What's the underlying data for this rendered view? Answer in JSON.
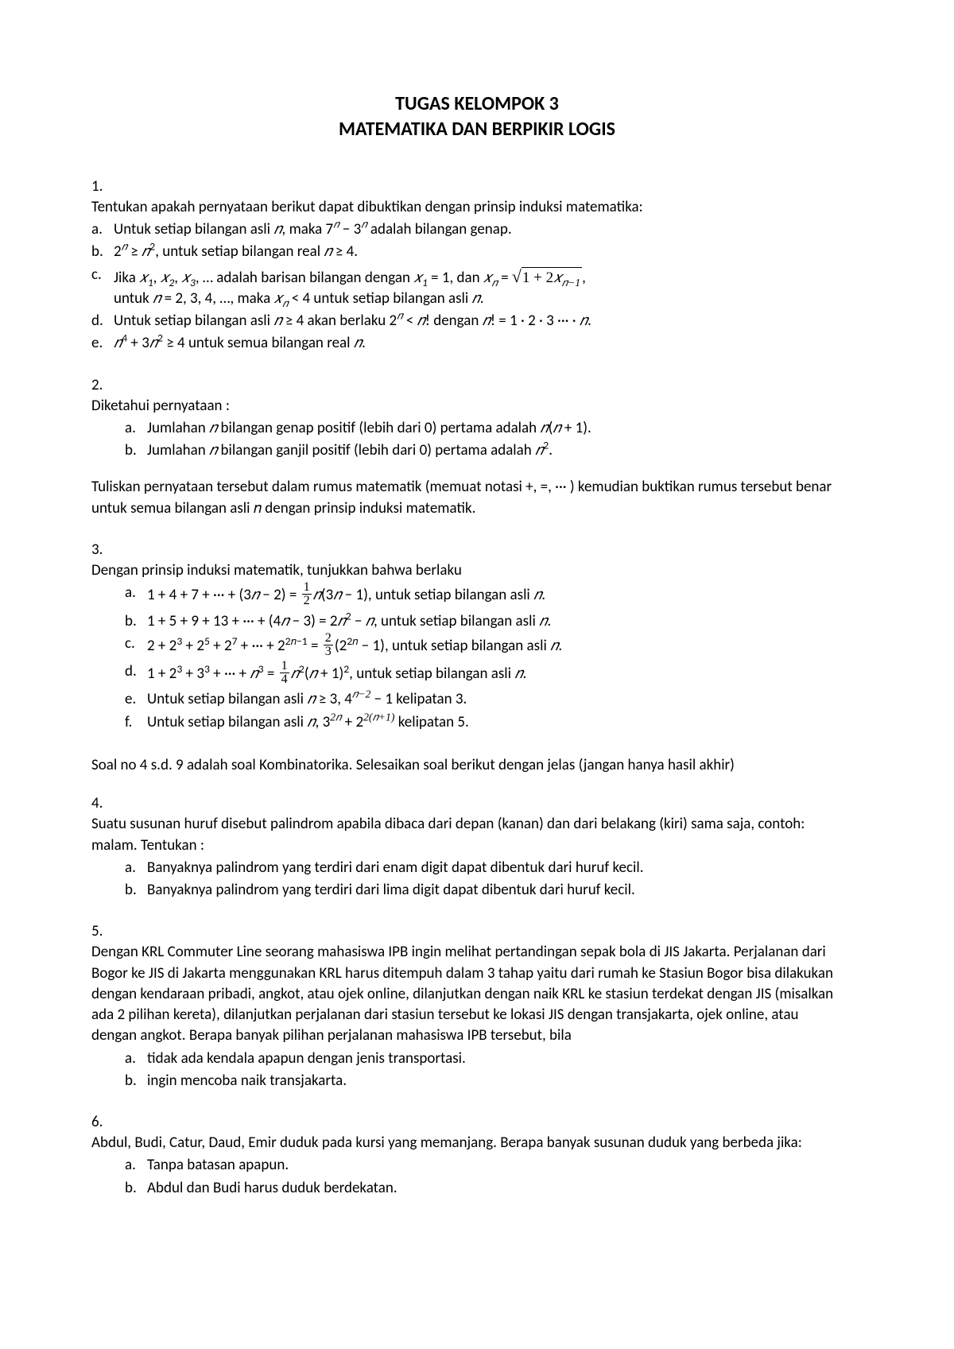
{
  "title": {
    "line1": "TUGAS KELOMPOK 3",
    "line2": "MATEMATIKA DAN BERPIKIR LOGIS"
  },
  "q1": {
    "num": "1.",
    "text": "Tentukan apakah pernyataan berikut dapat dibuktikan dengan prinsip induksi matematika:",
    "a_l": "a.",
    "a_t1": "Untuk setiap bilangan asli ",
    "a_t2": ",  maka  7",
    "a_t3": " − 3",
    "a_t4": "  adalah bilangan genap.",
    "b_l": "b.",
    "b_t1": "2",
    "b_t2": " ≥ ",
    "b_t3": ",  untuk setiap bilangan real  ",
    "b_t4": " ≥ 4.",
    "c_l": "c.",
    "c_t1": "Jika ",
    "c_t2": ", ",
    "c_t3": ", ",
    "c_t4": ", …  adalah barisan bilangan dengan ",
    "c_t5": " = 1,  dan  ",
    "c_t6": " = ",
    "c_t7": "1 + 2",
    "c_t8": ",",
    "c_t9": "untuk ",
    "c_t10": " = 2, 3, 4, …, maka  ",
    "c_t11": " < 4 untuk setiap bilangan asli ",
    "c_t12": ".",
    "d_l": "d.",
    "d_t1": "Untuk setiap bilangan asli ",
    "d_t2": " ≥ 4 akan berlaku  2",
    "d_t3": " < ",
    "d_t4": "!  dengan  ",
    "d_t5": "! = 1 · 2 · 3 ··· · ",
    "d_t6": ".",
    "e_l": "e.",
    "e_t1": "",
    "e_t2": " + 3",
    "e_t3": " ≥ 4  untuk semua bilangan real ",
    "e_t4": "."
  },
  "q2": {
    "num": "2.",
    "text": "Diketahui pernyataan :",
    "a_l": "a.",
    "a_t1": "Jumlahan ",
    "a_t2": " bilangan genap positif (lebih dari 0) pertama adalah ",
    "a_t3": "(",
    "a_t4": " + 1).",
    "b_l": "b.",
    "b_t1": "Jumlahan ",
    "b_t2": " bilangan ganjil positif (lebih dari 0) pertama adalah ",
    "b_t3": ".",
    "follow": "Tuliskan pernyataan tersebut dalam rumus matematik (memuat notasi +,  =, ··· ) kemudian buktikan rumus tersebut benar untuk semua bilangan asli 𝑛 dengan prinsip induksi matematik."
  },
  "q3": {
    "num": "3.",
    "text": "Dengan prinsip induksi matematik,  tunjukkan bahwa  berlaku",
    "a_l": "a.",
    "a_t1": "1 + 4 + 7 +  ···  + (3",
    "a_t2": " − 2) = ",
    "a_t3": "(3",
    "a_t4": " − 1),  untuk setiap bilangan asli ",
    "a_t5": ".",
    "b_l": "b.",
    "b_t1": "1 + 5 + 9 + 13 +  ···  + (4",
    "b_t2": " − 3) = 2",
    "b_t3": " − ",
    "b_t4": ",  untuk setiap bilangan asli ",
    "b_t5": ".",
    "c_l": "c.",
    "c_t1": "2 + 2",
    "c_t2": " + 2",
    "c_t3": " + 2",
    "c_t4": " +  ···  + 2",
    "c_t5": " = ",
    "c_t6": "(2",
    "c_t7": " − 1),  untuk setiap bilangan asli ",
    "c_t8": ".",
    "d_l": "d.",
    "d_t1": "1 + 2",
    "d_t2": " + 3",
    "d_t3": " +  ···  + ",
    "d_t4": " = ",
    "d_t5": "(",
    "d_t6": " + 1)",
    "d_t7": ",  untuk setiap bilangan asli ",
    "d_t8": ".",
    "e_l": "e.",
    "e_t1": "Untuk setiap bilangan asli ",
    "e_t2": " ≥ 3,    4",
    "e_t3": " − 1 kelipatan 3.",
    "f_l": "f.",
    "f_t1": "Untuk setiap bilangan asli ",
    "f_t2": ",     3",
    "f_t3": " + 2",
    "f_t4": " kelipatan 5."
  },
  "note": "Soal no 4 s.d. 9 adalah soal Kombinatorika. Selesaikan soal berikut dengan jelas (jangan hanya hasil akhir)",
  "q4": {
    "num": "4.",
    "text": "Suatu susunan huruf  disebut palindrom apabila dibaca dari depan (kanan) dan dari belakang (kiri) sama saja, contoh: malam.  Tentukan :",
    "a_l": "a.",
    "a_t": "Banyaknya palindrom yang terdiri dari enam digit  dapat dibentuk dari huruf kecil.",
    "b_l": "b.",
    "b_t": "Banyaknya palindrom yang terdiri dari lima digit  dapat dibentuk dari huruf kecil."
  },
  "q5": {
    "num": "5.",
    "text": "Dengan KRL Commuter Line seorang mahasiswa IPB ingin melihat pertandingan sepak bola di JIS Jakarta. Perjalanan dari Bogor ke JIS  di Jakarta menggunakan KRL harus ditempuh dalam 3 tahap yaitu dari rumah ke Stasiun Bogor bisa dilakukan dengan kendaraan pribadi, angkot, atau ojek online,  dilanjutkan dengan naik KRL ke stasiun terdekat dengan JIS (misalkan ada 2 pilihan kereta), dilanjutkan perjalanan dari stasiun tersebut ke lokasi JIS dengan transjakarta, ojek online, atau dengan angkot.  Berapa banyak pilihan perjalanan mahasiswa IPB tersebut,  bila",
    "a_l": "a.",
    "a_t": "tidak ada kendala apapun dengan jenis transportasi.",
    "b_l": "b.",
    "b_t": "ingin mencoba naik transjakarta."
  },
  "q6": {
    "num": "6.",
    "text": "Abdul, Budi, Catur, Daud, Emir duduk pada kursi yang memanjang. Berapa banyak susunan duduk yang berbeda jika:",
    "a_l": "a.",
    "a_t": "Tanpa batasan apapun.",
    "b_l": "b.",
    "b_t": "Abdul dan Budi harus duduk berdekatan."
  },
  "symbols": {
    "n": "𝑛",
    "x": "𝑥",
    "n2": "𝑛²",
    "n4": "𝑛⁴",
    "sup_n": "𝑛",
    "sup2": "2",
    "sup3": "3",
    "sup4": "4",
    "sup5": "5",
    "sup7": "7",
    "sup_2n": "2𝑛",
    "sup_2n1": "2𝑛−1",
    "sup_nm2": "𝑛−2",
    "sup_2np1": "2(𝑛+1)",
    "sub1": "1",
    "sub2": "2",
    "sub3": "3",
    "sub_n": "𝑛",
    "sub_nm1": "𝑛−1"
  }
}
